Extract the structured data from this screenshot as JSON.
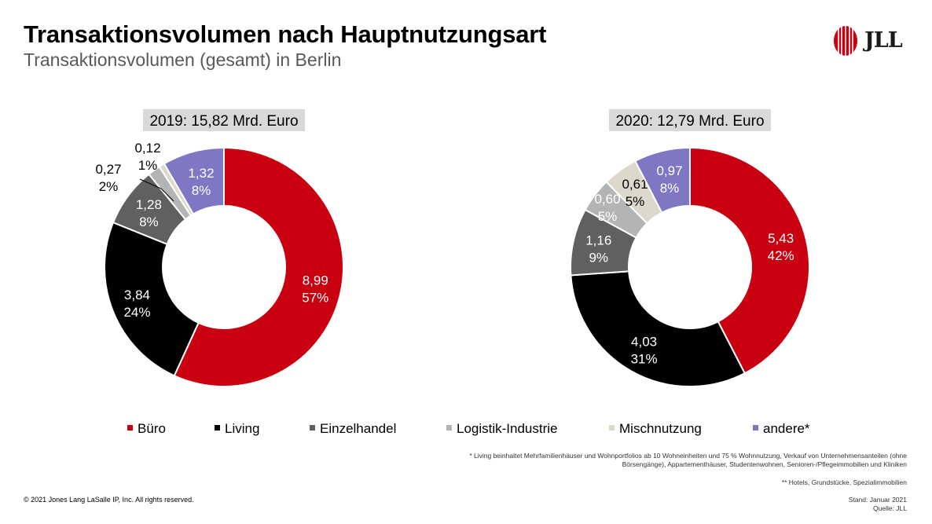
{
  "header": {
    "title": "Transaktionsvolumen nach Hauptnutzungsart",
    "subtitle": "Transaktionsvolumen (gesamt) in Berlin",
    "logo_text": "JLL"
  },
  "colors": {
    "buero": "#c8000f",
    "living": "#000000",
    "einzelhandel": "#5f6062",
    "logistik": "#b3b4b6",
    "misch": "#ddd8cc",
    "andere": "#7f77c4",
    "banner_bg": "#d9d9d9"
  },
  "chart_data": [
    {
      "type": "pie",
      "banner": "2019: 15,82 Mrd. Euro",
      "total": 15.82,
      "slices": [
        {
          "name": "Büro",
          "value": 8.99,
          "percent": 57,
          "value_label": "8,99",
          "percent_label": "57%"
        },
        {
          "name": "Living",
          "value": 3.84,
          "percent": 24,
          "value_label": "3,84",
          "percent_label": "24%"
        },
        {
          "name": "Einzelhandel",
          "value": 1.28,
          "percent": 8,
          "value_label": "1,28",
          "percent_label": "8%"
        },
        {
          "name": "Logistik-Industrie",
          "value": 0.27,
          "percent": 2,
          "value_label": "0,27",
          "percent_label": "2%"
        },
        {
          "name": "Mischnutzung",
          "value": 0.12,
          "percent": 1,
          "value_label": "0,12",
          "percent_label": "1%"
        },
        {
          "name": "andere*",
          "value": 1.32,
          "percent": 8,
          "value_label": "1,32",
          "percent_label": "8%"
        }
      ]
    },
    {
      "type": "pie",
      "banner": "2020: 12,79 Mrd. Euro",
      "total": 12.79,
      "slices": [
        {
          "name": "Büro",
          "value": 5.43,
          "percent": 42,
          "value_label": "5,43",
          "percent_label": "42%"
        },
        {
          "name": "Living",
          "value": 4.03,
          "percent": 31,
          "value_label": "4,03",
          "percent_label": "31%"
        },
        {
          "name": "Einzelhandel",
          "value": 1.16,
          "percent": 9,
          "value_label": "1,16",
          "percent_label": "9%"
        },
        {
          "name": "Logistik-Industrie",
          "value": 0.6,
          "percent": 5,
          "value_label": "0,60",
          "percent_label": "5%"
        },
        {
          "name": "Mischnutzung",
          "value": 0.61,
          "percent": 5,
          "value_label": "0,61",
          "percent_label": "5%"
        },
        {
          "name": "andere*",
          "value": 0.97,
          "percent": 8,
          "value_label": "0,97",
          "percent_label": "8%"
        }
      ]
    }
  ],
  "legend": [
    {
      "label": "Büro",
      "color": "#c8000f"
    },
    {
      "label": "Living",
      "color": "#000000"
    },
    {
      "label": "Einzelhandel",
      "color": "#5f6062"
    },
    {
      "label": "Logistik-Industrie",
      "color": "#b3b4b6"
    },
    {
      "label": "Mischnutzung",
      "color": "#ddd8cc"
    },
    {
      "label": "andere*",
      "color": "#7f77c4"
    }
  ],
  "footnotes": {
    "living_line1": "* Living beinhaltet Mehrfamilienhäuser und Wohnportfolios ab 10 Wohneinheiten und 75 % Wohnnutzung, Verkauf von Unternehmensanteilen (ohne",
    "living_line2": "Börsengänge), Appartementhäuser, Studentenwohnen, Senioren-/Pflegeimmobilien und Kliniken",
    "andere": "** Hotels, Grundstücke, Spezialimmobilien",
    "stand": "Stand: Januar 2021",
    "quelle": "Quelle: JLL"
  },
  "copyright": "© 2021 Jones Lang LaSalle IP, Inc. All rights reserved."
}
